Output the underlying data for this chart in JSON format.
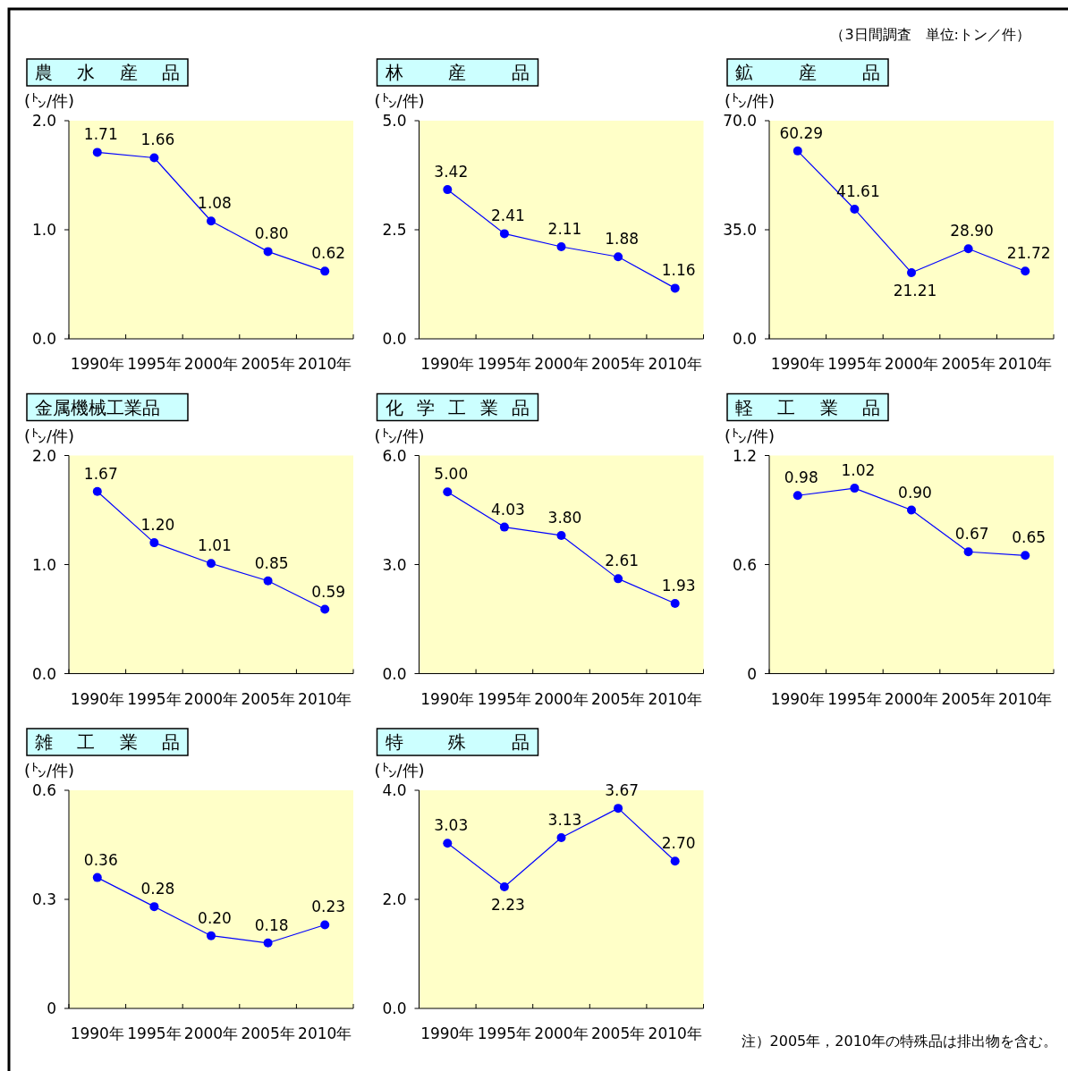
{
  "chart_data": [
    {
      "type": "line",
      "title": "農 水 産 品",
      "ylabel": "(㌧/件)",
      "categories": [
        "1990年",
        "1995年",
        "2000年",
        "2005年",
        "2010年"
      ],
      "series": [
        {
          "color": "#0000ff",
          "values": [
            1.71,
            1.66,
            1.08,
            0.8,
            0.62
          ]
        }
      ],
      "ylim": [
        0,
        2
      ],
      "yticks": [
        {
          "value": 0,
          "label": "0.0"
        },
        {
          "value": 1,
          "label": "1.0"
        },
        {
          "value": 2,
          "label": "2.0"
        }
      ],
      "value_labels": [
        "1.71",
        "1.66",
        "1.08",
        "0.80",
        "0.62"
      ],
      "marker": "circle",
      "annotations": [
        "（3日間調査　単位:トン／件）"
      ]
    },
    {
      "type": "line",
      "title": "林 産 品",
      "ylabel": "(㌧/件)",
      "categories": [
        "1990年",
        "1995年",
        "2000年",
        "2005年",
        "2010年"
      ],
      "series": [
        {
          "color": "#0000ff",
          "values": [
            3.42,
            2.41,
            2.11,
            1.88,
            1.16
          ]
        }
      ],
      "ylim": [
        0,
        5
      ],
      "yticks": [
        {
          "value": 0,
          "label": "0.0"
        },
        {
          "value": 2.5,
          "label": "2.5"
        },
        {
          "value": 5,
          "label": "5.0"
        }
      ],
      "value_labels": [
        "3.42",
        "2.41",
        "2.11",
        "1.88",
        "1.16"
      ],
      "marker": "circle"
    },
    {
      "type": "line",
      "title": "鉱 産 品",
      "ylabel": "(㌧/件)",
      "categories": [
        "1990年",
        "1995年",
        "2000年",
        "2005年",
        "2010年"
      ],
      "series": [
        {
          "color": "#0000ff",
          "values": [
            60.29,
            41.61,
            21.21,
            28.9,
            21.72
          ]
        }
      ],
      "ylim": [
        0,
        70
      ],
      "yticks": [
        {
          "value": 0,
          "label": "0.0"
        },
        {
          "value": 35,
          "label": "35.0"
        },
        {
          "value": 70,
          "label": "70.0"
        }
      ],
      "value_labels": [
        "60.29",
        "41.61",
        "21.21",
        "28.90",
        "21.72"
      ],
      "marker": "circle"
    },
    {
      "type": "line",
      "title": "金属機械工業品",
      "ylabel": "(㌧/件)",
      "categories": [
        "1990年",
        "1995年",
        "2000年",
        "2005年",
        "2010年"
      ],
      "series": [
        {
          "color": "#0000ff",
          "values": [
            1.67,
            1.2,
            1.01,
            0.85,
            0.59
          ]
        }
      ],
      "ylim": [
        0,
        2
      ],
      "yticks": [
        {
          "value": 0,
          "label": "0.0"
        },
        {
          "value": 1,
          "label": "1.0"
        },
        {
          "value": 2,
          "label": "2.0"
        }
      ],
      "value_labels": [
        "1.67",
        "1.20",
        "1.01",
        "0.85",
        "0.59"
      ],
      "marker": "circle"
    },
    {
      "type": "line",
      "title": "化 学 工 業 品",
      "ylabel": "(㌧/件)",
      "categories": [
        "1990年",
        "1995年",
        "2000年",
        "2005年",
        "2010年"
      ],
      "series": [
        {
          "color": "#0000ff",
          "values": [
            5.0,
            4.03,
            3.8,
            2.61,
            1.93
          ]
        }
      ],
      "ylim": [
        0,
        6
      ],
      "yticks": [
        {
          "value": 0,
          "label": "0.0"
        },
        {
          "value": 3,
          "label": "3.0"
        },
        {
          "value": 6,
          "label": "6.0"
        }
      ],
      "value_labels": [
        "5.00",
        "4.03",
        "3.80",
        "2.61",
        "1.93"
      ],
      "marker": "circle"
    },
    {
      "type": "line",
      "title": "軽 工 業 品",
      "ylabel": "(㌧/件)",
      "categories": [
        "1990年",
        "1995年",
        "2000年",
        "2005年",
        "2010年"
      ],
      "series": [
        {
          "color": "#0000ff",
          "values": [
            0.98,
            1.02,
            0.9,
            0.67,
            0.65
          ]
        }
      ],
      "ylim": [
        0,
        1.2
      ],
      "yticks": [
        0,
        0.6,
        1.2
      ],
      "value_labels": [
        "0.98",
        "1.02",
        "0.90",
        "0.67",
        "0.65"
      ],
      "marker": "circle"
    },
    {
      "type": "line",
      "title": "雑 工 業 品",
      "ylabel": "(㌧/件)",
      "categories": [
        "1990年",
        "1995年",
        "2000年",
        "2005年",
        "2010年"
      ],
      "series": [
        {
          "color": "#0000ff",
          "values": [
            0.36,
            0.28,
            0.2,
            0.18,
            0.23
          ]
        }
      ],
      "ylim": [
        0,
        0.6
      ],
      "yticks": [
        0,
        0.3,
        0.6
      ],
      "value_labels": [
        "0.36",
        "0.28",
        "0.20",
        "0.18",
        "0.23"
      ],
      "marker": "circle"
    },
    {
      "type": "line",
      "title": "特 殊 品",
      "ylabel": "(㌧/件)",
      "categories": [
        "1990年",
        "1995年",
        "2000年",
        "2005年",
        "2010年"
      ],
      "series": [
        {
          "color": "#0000ff",
          "values": [
            3.03,
            2.23,
            3.13,
            3.67,
            2.7
          ]
        }
      ],
      "ylim": [
        0,
        4
      ],
      "yticks": [
        {
          "value": 0,
          "label": "0.0"
        },
        {
          "value": 2,
          "label": "2.0"
        },
        {
          "value": 4,
          "label": "4.0"
        }
      ],
      "value_labels": [
        "3.03",
        "2.23",
        "3.13",
        "3.67",
        "2.70"
      ],
      "marker": "circle",
      "annotations": [
        "注）2005年，2010年の特殊品は排出物を含む。"
      ]
    }
  ]
}
